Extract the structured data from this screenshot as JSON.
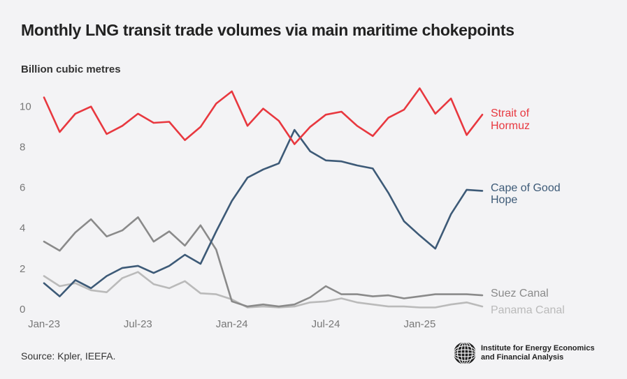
{
  "page": {
    "title": "Monthly LNG transit trade volumes via main maritime chokepoints",
    "source": "Source: Kpler, IEEFA.",
    "logo": {
      "icon": "globe-icon",
      "line1": "Institute for Energy Economics",
      "line2": "and Financial Analysis"
    }
  },
  "chart_data": {
    "type": "line",
    "title": "Monthly LNG transit trade volumes via main maritime chokepoints",
    "ylabel": "Billion cubic metres",
    "xlabel": "",
    "ylim": [
      0,
      10.8
    ],
    "yticks": [
      0,
      2,
      4,
      6,
      8,
      10
    ],
    "grid": false,
    "x": [
      "Jan-23",
      "Feb-23",
      "Mar-23",
      "Apr-23",
      "May-23",
      "Jun-23",
      "Jul-23",
      "Aug-23",
      "Sep-23",
      "Oct-23",
      "Nov-23",
      "Dec-23",
      "Jan-24",
      "Feb-24",
      "Mar-24",
      "Apr-24",
      "May-24",
      "Jun-24",
      "Jul-24",
      "Aug-24",
      "Sep-24",
      "Oct-24",
      "Nov-24",
      "Dec-24",
      "Jan-25",
      "Feb-25",
      "Mar-25",
      "Apr-25",
      "May-25"
    ],
    "xtick_labels": [
      "Jan-23",
      "Jul-23",
      "Jan-24",
      "Jul-24",
      "Jan-25"
    ],
    "xtick_indices": [
      0,
      6,
      12,
      18,
      24
    ],
    "series": [
      {
        "name": "Strait of Hormuz",
        "label_lines": [
          "Strait of",
          "Hormuz"
        ],
        "color": "#e8383f",
        "values": [
          10.4,
          8.7,
          9.6,
          9.95,
          8.6,
          9.0,
          9.6,
          9.15,
          9.2,
          8.3,
          8.95,
          10.1,
          10.7,
          9.0,
          9.85,
          9.25,
          8.1,
          8.95,
          9.55,
          9.7,
          9.0,
          8.5,
          9.4,
          9.8,
          10.85,
          9.6,
          10.35,
          8.55,
          9.55
        ]
      },
      {
        "name": "Cape of Good Hope",
        "label_lines": [
          "Cape of Good",
          "Hope"
        ],
        "color": "#3d5a77",
        "values": [
          1.25,
          0.6,
          1.4,
          1.0,
          1.6,
          2.0,
          2.1,
          1.75,
          2.1,
          2.65,
          2.2,
          3.8,
          5.3,
          6.45,
          6.85,
          7.15,
          8.8,
          7.75,
          7.3,
          7.25,
          7.05,
          6.9,
          5.7,
          4.3,
          3.6,
          2.95,
          4.65,
          5.85,
          5.8
        ]
      },
      {
        "name": "Suez Canal",
        "label_lines": [
          "Suez Canal"
        ],
        "color": "#8a8a8a",
        "values": [
          3.3,
          2.85,
          3.75,
          4.4,
          3.55,
          3.85,
          4.5,
          3.3,
          3.8,
          3.1,
          4.1,
          2.9,
          0.35,
          0.1,
          0.2,
          0.1,
          0.2,
          0.55,
          1.1,
          0.7,
          0.7,
          0.6,
          0.65,
          0.5,
          0.6,
          0.7,
          0.7,
          0.7,
          0.65
        ]
      },
      {
        "name": "Panama Canal",
        "label_lines": [
          "Panama Canal"
        ],
        "color": "#bababa",
        "values": [
          1.6,
          1.1,
          1.25,
          0.9,
          0.8,
          1.5,
          1.8,
          1.2,
          1.0,
          1.35,
          0.75,
          0.7,
          0.45,
          0.05,
          0.1,
          0.05,
          0.1,
          0.3,
          0.35,
          0.5,
          0.3,
          0.2,
          0.1,
          0.1,
          0.05,
          0.05,
          0.2,
          0.3,
          0.1
        ]
      }
    ]
  }
}
